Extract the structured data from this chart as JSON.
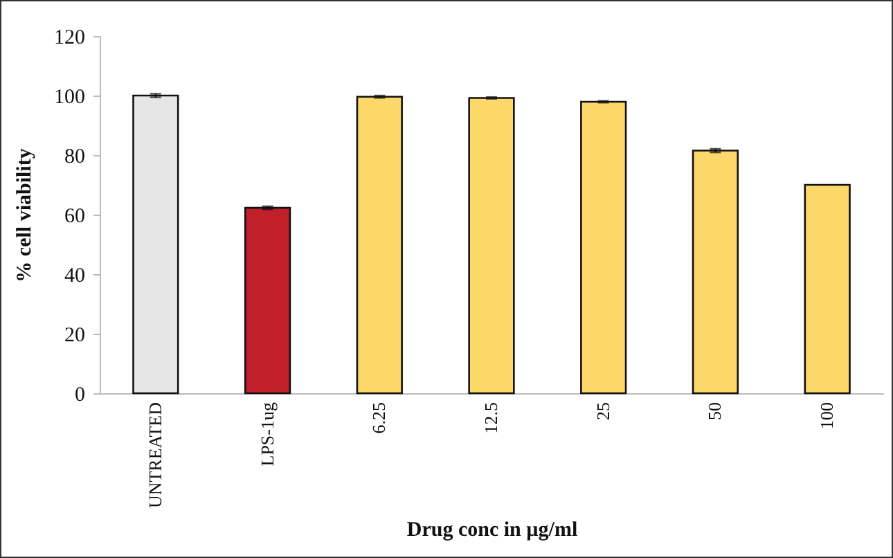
{
  "chart_data": {
    "type": "bar",
    "xlabel": "Drug conc in µg/ml",
    "ylabel": "% cell viability",
    "categories": [
      "UNTREATED",
      "LPS-1ug",
      "6.25",
      "12.5",
      "25",
      "50",
      "100"
    ],
    "values": [
      100,
      62.3,
      99.6,
      99.2,
      97.9,
      81.5,
      70
    ],
    "colors": [
      "#e6e6e6",
      "#c0202a",
      "#fcd86a",
      "#fcd86a",
      "#fcd86a",
      "#fcd86a",
      "#fcd86a"
    ],
    "errors": [
      0.6,
      0.5,
      0.4,
      0.3,
      0.3,
      0.6,
      null
    ],
    "ylim": [
      0,
      120
    ],
    "yticks": [
      0,
      20,
      40,
      60,
      80,
      100,
      120
    ],
    "grid": false
  }
}
